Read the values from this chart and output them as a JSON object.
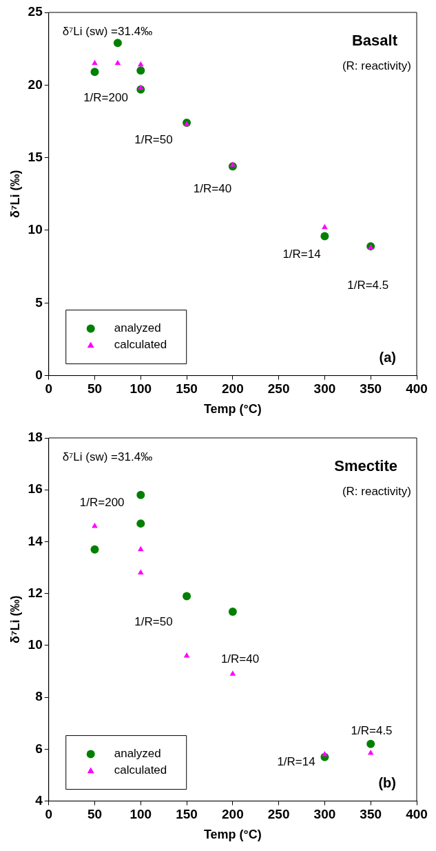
{
  "chart_data": [
    {
      "type": "scatter",
      "title": "Basalt",
      "subtitle": "(R: reactivity)",
      "xlabel": "Temp (°C)",
      "ylabel": "δ⁷Li (‰)",
      "xlim": [
        0,
        400
      ],
      "xticks": [
        0,
        50,
        100,
        150,
        200,
        250,
        300,
        350,
        400
      ],
      "ylim": [
        0,
        25
      ],
      "yticks": [
        0,
        5,
        10,
        15,
        20,
        25
      ],
      "grid": false,
      "legend": "bottom left",
      "series": [
        {
          "name": "analyzed",
          "color": "#008000",
          "marker": "circle",
          "x": [
            50,
            75,
            100,
            100,
            150,
            200,
            300,
            350
          ],
          "values": [
            20.9,
            22.9,
            21.0,
            19.7,
            17.4,
            14.4,
            9.6,
            8.9
          ]
        },
        {
          "name": "calculated",
          "color": "#ff00ff",
          "marker": "triangle",
          "x": [
            50,
            75,
            100,
            100,
            150,
            200,
            300,
            350
          ],
          "values": [
            21.5,
            21.5,
            21.4,
            19.8,
            17.3,
            14.5,
            10.2,
            8.8
          ]
        }
      ],
      "annotations": [
        "δ⁷Li (sw) =31.4‰",
        "(a)",
        "1/R=200",
        "1/R=50",
        "1/R=40",
        "1/R=14",
        "1/R=4.5"
      ]
    },
    {
      "type": "scatter",
      "title": "Smectite",
      "subtitle": "(R: reactivity)",
      "xlabel": "Temp (°C)",
      "ylabel": "δ⁷Li (‰)",
      "xlim": [
        0,
        400
      ],
      "xticks": [
        0,
        50,
        100,
        150,
        200,
        250,
        300,
        350,
        400
      ],
      "ylim": [
        4,
        18
      ],
      "yticks": [
        4,
        6,
        8,
        10,
        12,
        14,
        16,
        18
      ],
      "grid": false,
      "legend": "bottom left",
      "series": [
        {
          "name": "analyzed",
          "color": "#008000",
          "marker": "circle",
          "x": [
            50,
            100,
            100,
            150,
            200,
            300,
            350
          ],
          "values": [
            13.7,
            15.8,
            14.7,
            11.9,
            11.3,
            5.7,
            6.2
          ]
        },
        {
          "name": "calculated",
          "color": "#ff00ff",
          "marker": "triangle",
          "x": [
            50,
            100,
            100,
            150,
            200,
            300,
            350
          ],
          "values": [
            14.6,
            13.7,
            12.8,
            9.6,
            8.9,
            5.8,
            5.85
          ]
        }
      ],
      "annotations": [
        "δ⁷Li (sw) =31.4‰",
        "(b)",
        "1/R=200",
        "1/R=50",
        "1/R=40",
        "1/R=4.5",
        "1/R=14"
      ]
    }
  ]
}
